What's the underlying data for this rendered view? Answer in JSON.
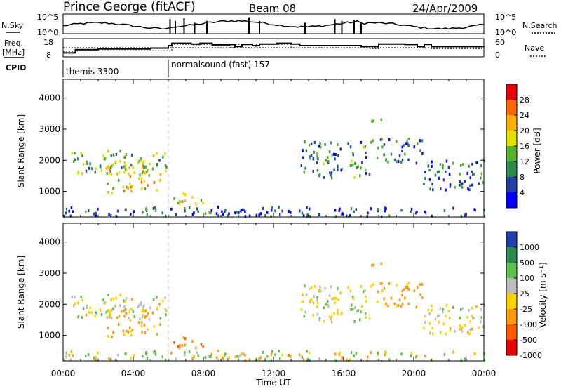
{
  "header": {
    "title": "Prince George (fitACF)",
    "beam": "Beam 08",
    "date": "24/Apr/2009"
  },
  "top_panels": {
    "nsky_label": "N.Sky",
    "nsearch_label": "N.Search",
    "nsky_ticks": [
      "10^5",
      "10^0"
    ],
    "nsearch_ticks": [
      "10^5",
      "10^0"
    ],
    "freq_label_line1": "Freq.",
    "freq_label_line2": "[MHz]",
    "freq_ticks": [
      "18",
      "8"
    ],
    "nave_label": "Nave",
    "nave_ticks": [
      "60",
      "0"
    ],
    "cpid_label": "CPID",
    "cpid_segments": [
      {
        "label": "themis 3300",
        "start_h": 0,
        "end_h": 6
      },
      {
        "label": "normalsound (fast) 157",
        "start_h": 6,
        "end_h": 24
      }
    ],
    "freq_step_series": [
      [
        0,
        10
      ],
      [
        0.7,
        12
      ],
      [
        2,
        12.5
      ],
      [
        4,
        12.5
      ],
      [
        5,
        13
      ],
      [
        6,
        13
      ],
      [
        6,
        14.5
      ],
      [
        6.2,
        16
      ],
      [
        7.3,
        15.5
      ],
      [
        7.8,
        16
      ],
      [
        8.5,
        15
      ],
      [
        9.5,
        15.2
      ],
      [
        9.8,
        14
      ],
      [
        10.2,
        15.3
      ],
      [
        10.8,
        14.5
      ],
      [
        11.2,
        15.5
      ],
      [
        12.2,
        16
      ],
      [
        13,
        15.5
      ],
      [
        13.5,
        14.5
      ],
      [
        16,
        14.5
      ],
      [
        17,
        14
      ],
      [
        18,
        15.5
      ],
      [
        19.5,
        15.2
      ],
      [
        20.2,
        14
      ],
      [
        20.6,
        15.3
      ],
      [
        21,
        14
      ],
      [
        24,
        14.2
      ]
    ],
    "nave_step_series": [
      [
        0,
        18
      ],
      [
        0.7,
        20
      ],
      [
        2,
        20
      ],
      [
        6,
        20
      ],
      [
        6.2,
        44
      ],
      [
        7.3,
        42
      ],
      [
        7.8,
        44
      ],
      [
        8.5,
        30
      ],
      [
        9.5,
        32
      ],
      [
        9.8,
        44
      ],
      [
        10.2,
        30
      ],
      [
        11,
        44
      ],
      [
        12.8,
        44
      ],
      [
        13,
        30
      ],
      [
        17.5,
        28
      ],
      [
        18,
        46
      ],
      [
        19.5,
        44
      ],
      [
        20.2,
        30
      ],
      [
        20.6,
        44
      ],
      [
        21,
        28
      ],
      [
        24,
        26
      ]
    ]
  },
  "power_panel": {
    "ylabel": "Slant Range [km]",
    "colorbar_label": "Power [dB]",
    "colorbar_ticks": [
      "28",
      "24",
      "20",
      "16",
      "12",
      "8",
      "4"
    ],
    "colorbar_colors": [
      "#e8000b",
      "#ff6a00",
      "#ffb000",
      "#e0e000",
      "#55b030",
      "#2d8a4e",
      "#2040a8",
      "#0000ff"
    ]
  },
  "velocity_panel": {
    "ylabel": "Slant Range [km]",
    "colorbar_label": "Velocity [m s⁻¹]",
    "colorbar_ticks": [
      "1000",
      "500",
      "100",
      "25",
      "-25",
      "-100",
      "-500",
      "-1000"
    ],
    "colorbar_colors": [
      "#2040b0",
      "#2d8a4e",
      "#5cc04a",
      "#bdbdbd",
      "#ffd000",
      "#ff9a10",
      "#ff5a00",
      "#e60000"
    ]
  },
  "xaxis": {
    "label": "Time UT",
    "ticks": [
      "00:00",
      "04:00",
      "08:00",
      "12:00",
      "16:00",
      "20:00",
      "00:00"
    ]
  },
  "chart_data": {
    "type": "heatmap",
    "title": "Prince George (fitACF)",
    "xlabel": "Time UT",
    "ylabel": "Slant Range [km]",
    "xlim_hours": [
      0,
      24
    ],
    "ylim": [
      180,
      4600
    ],
    "yticks": [
      1000,
      2000,
      3000,
      4000
    ],
    "series": [
      {
        "name": "Power [dB]",
        "zlim": [
          0,
          32
        ]
      },
      {
        "name": "Velocity [m s⁻¹]",
        "zlim": [
          -1000,
          1000
        ]
      }
    ],
    "echo_regions": [
      {
        "t0": 0.2,
        "t1": 6.0,
        "r0": 1500,
        "r1": 2300,
        "power": 14,
        "velocity": 10
      },
      {
        "t0": 2.5,
        "t1": 5.5,
        "r0": 900,
        "r1": 1800,
        "power": 20,
        "velocity": -80
      },
      {
        "t0": 6.2,
        "t1": 8.0,
        "r0": 600,
        "r1": 1000,
        "power": 18,
        "velocity": -300
      },
      {
        "t0": 13.5,
        "t1": 17.5,
        "r0": 1400,
        "r1": 2600,
        "power": 10,
        "velocity": 20
      },
      {
        "t0": 17.5,
        "t1": 20.5,
        "r0": 1900,
        "r1": 2700,
        "power": 9,
        "velocity": -120
      },
      {
        "t0": 20.5,
        "t1": 24,
        "r0": 1000,
        "r1": 2000,
        "power": 8,
        "velocity": 0
      },
      {
        "t0": 17.5,
        "t1": 18.3,
        "r0": 3200,
        "r1": 3450,
        "power": 8,
        "velocity": -250
      },
      {
        "t0": 0,
        "t1": 24,
        "r0": 180,
        "r1": 500,
        "power": 6,
        "velocity": 30
      }
    ]
  }
}
